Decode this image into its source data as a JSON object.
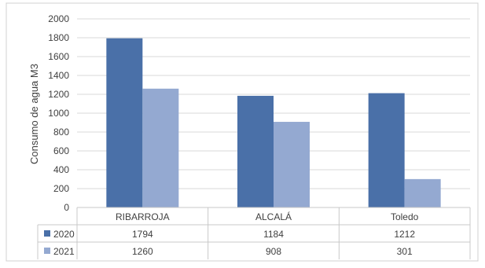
{
  "chart_data": {
    "type": "bar",
    "categories": [
      "RIBARROJA",
      "ALCALÁ",
      "Toledo"
    ],
    "series": [
      {
        "name": "2020",
        "values": [
          1794,
          1184,
          1212
        ],
        "color": "#4A70A8"
      },
      {
        "name": "2021",
        "values": [
          1260,
          908,
          301
        ],
        "color": "#94A9D1"
      }
    ],
    "ylabel": "Consumo de agua M3",
    "ylim": [
      0,
      2000
    ],
    "yticks": [
      "0",
      "200",
      "400",
      "600",
      "800",
      "1000",
      "1200",
      "1400",
      "1600",
      "1800",
      "2000"
    ],
    "grid": true,
    "legend": "data-table"
  }
}
